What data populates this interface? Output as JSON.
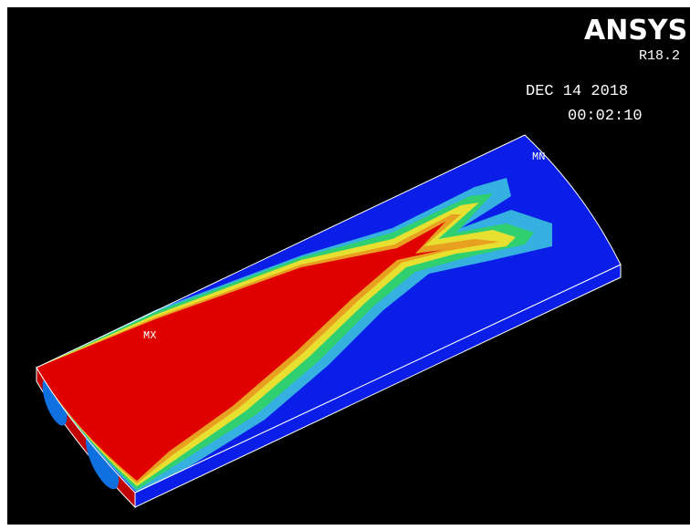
{
  "logo": "ANSYS",
  "version": "R18.2",
  "date": "DEC 14 2018",
  "time": "00:02:10",
  "labels": {
    "max": "MX",
    "min": "MN"
  }
}
